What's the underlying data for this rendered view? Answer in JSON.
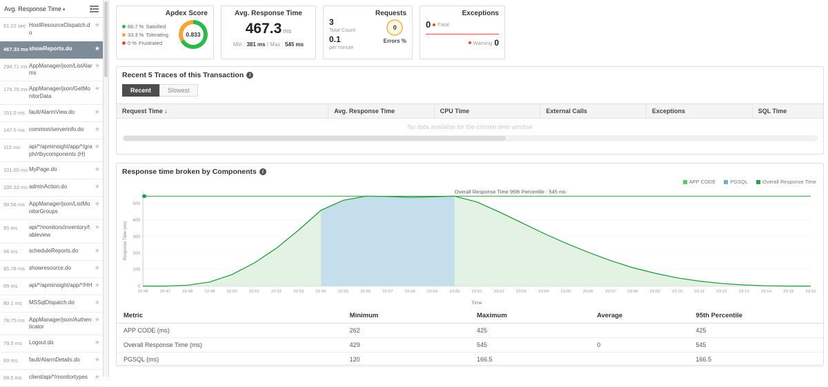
{
  "sidebar": {
    "dropdown_label": "Avg. Response Time",
    "items": [
      {
        "time": "61.22 sec",
        "name": "HostResourceDispatch.do",
        "selected": false
      },
      {
        "time": "467.33 ms",
        "name": "showReports.do",
        "selected": true
      },
      {
        "time": "294.71 ms",
        "name": "AppManager/json/ListAlarms",
        "selected": false
      },
      {
        "time": "179.75 ms",
        "name": "AppManager/json/GetMonitorData",
        "selected": false
      },
      {
        "time": "151.5 ms",
        "name": "fault/AlarmView.do",
        "selected": false
      },
      {
        "time": "147.5 ms",
        "name": "common/serverinfo.do",
        "selected": false
      },
      {
        "time": "115 ms",
        "name": "api/*/apminsight/app/*/graph/rtbycomponents (H)",
        "selected": false
      },
      {
        "time": "101.65 ms",
        "name": "MyPage.do",
        "selected": false
      },
      {
        "time": "100.33 ms",
        "name": "adminAction.do",
        "selected": false
      },
      {
        "time": "99.56 ms",
        "name": "AppManager/json/ListMonitorGroups",
        "selected": false
      },
      {
        "time": "95 ms",
        "name": "api/*/monitors/inventory/tableview",
        "selected": false
      },
      {
        "time": "94 ms",
        "name": "scheduleReports.do",
        "selected": false
      },
      {
        "time": "85.78 ms",
        "name": "showresource.do",
        "selected": false
      },
      {
        "time": "85 ms",
        "name": "api/*/apminsight/app/*/HH",
        "selected": false
      },
      {
        "time": "80.1 ms",
        "name": "MSSqlDispatch.do",
        "selected": false
      },
      {
        "time": "78.75 ms",
        "name": "AppManager/json/Authenticator",
        "selected": false
      },
      {
        "time": "78.5 ms",
        "name": "Logout.do",
        "selected": false
      },
      {
        "time": "69 ms",
        "name": "fault/AlarmDetails.do",
        "selected": false
      },
      {
        "time": "68.5 ms",
        "name": "client/api/*/monitortypes",
        "selected": false
      }
    ]
  },
  "cards": {
    "apdex": {
      "title": "Apdex Score",
      "score": "0.833",
      "legend": [
        {
          "pct": "66.7 %",
          "label": "Satisfied",
          "color": "#2db84c"
        },
        {
          "pct": "33.3 %",
          "label": "Tolerating",
          "color": "#f2a63a"
        },
        {
          "pct": "0 %",
          "label": "Frustrated",
          "color": "#e8453c"
        }
      ]
    },
    "avg_response": {
      "title": "Avg. Response Time",
      "value": "467.3",
      "unit": "ms",
      "min_label": "Min :",
      "min_value": "381 ms",
      "divider": "|",
      "max_label": "Max :",
      "max_value": "545 ms"
    },
    "requests": {
      "title": "Requests",
      "total_value": "3",
      "total_label": "Total Count",
      "rate_value": "0.1",
      "rate_label": "per minute",
      "errors_value": "0",
      "errors_label": "Errors %"
    },
    "exceptions": {
      "title": "Exceptions",
      "fatal_value": "0",
      "fatal_label": "Fatal",
      "warning_value": "0",
      "warning_label": "Warning"
    }
  },
  "traces": {
    "title": "Recent 5 Traces of this Transaction",
    "tabs": [
      "Recent",
      "Slowest"
    ],
    "columns": [
      "Request Time ↓",
      "Avg. Response Time",
      "CPU Time",
      "External Calls",
      "Exceptions",
      "SQL Time"
    ],
    "empty_message": "No data available for the chosen time window"
  },
  "components": {
    "title": "Response time broken by Components",
    "chart_data": {
      "type": "area",
      "xlabel": "Time",
      "ylabel": "Response Time (ms)",
      "ylim": [
        0,
        550
      ],
      "yticks": [
        0,
        100,
        200,
        300,
        400,
        500
      ],
      "x": [
        "22:46",
        "22:47",
        "22:48",
        "22:49",
        "22:50",
        "22:51",
        "22:52",
        "22:53",
        "22:54",
        "22:55",
        "22:56",
        "22:57",
        "22:58",
        "22:59",
        "23:00",
        "23:01",
        "23:02",
        "23:03",
        "23:04",
        "23:05",
        "23:06",
        "23:07",
        "23:08",
        "23:09",
        "23:10",
        "23:11",
        "23:12",
        "23:13",
        "23:14",
        "23:15",
        "23:16"
      ],
      "series": [
        {
          "name": "Overall Response Time",
          "color": "#2e9e47",
          "fill": "#e3f2e3",
          "values": [
            0,
            0,
            5,
            25,
            70,
            140,
            230,
            340,
            460,
            520,
            545,
            543,
            538,
            541,
            545,
            510,
            450,
            385,
            320,
            260,
            205,
            155,
            112,
            78,
            50,
            30,
            16,
            7,
            2,
            0,
            0
          ]
        },
        {
          "name": "PGSQL",
          "color": "#74add1",
          "fill": "#bcd8ec",
          "band_x": [
            "22:54",
            "23:00"
          ]
        }
      ],
      "annotation": {
        "label": "Overall Response Time 95th Percentile : 545 ms",
        "value": 545,
        "color": "#2e9e47"
      },
      "legend": [
        {
          "label": "APP CODE",
          "color": "#6abf69"
        },
        {
          "label": "PGSQL",
          "color": "#74add1"
        },
        {
          "label": "Overall Response Time",
          "color": "#2e9e47"
        }
      ]
    },
    "table": {
      "columns": [
        "Metric",
        "Minimum",
        "Maximum",
        "Average",
        "95th Percentile"
      ],
      "rows": [
        [
          "APP CODE (ms)",
          "262",
          "425",
          "",
          "425"
        ],
        [
          "Overall Response Time (ms)",
          "429",
          "545",
          "0",
          "545"
        ],
        [
          "PGSQL (ms)",
          "120",
          "166.5",
          "",
          "166.5"
        ]
      ]
    }
  }
}
